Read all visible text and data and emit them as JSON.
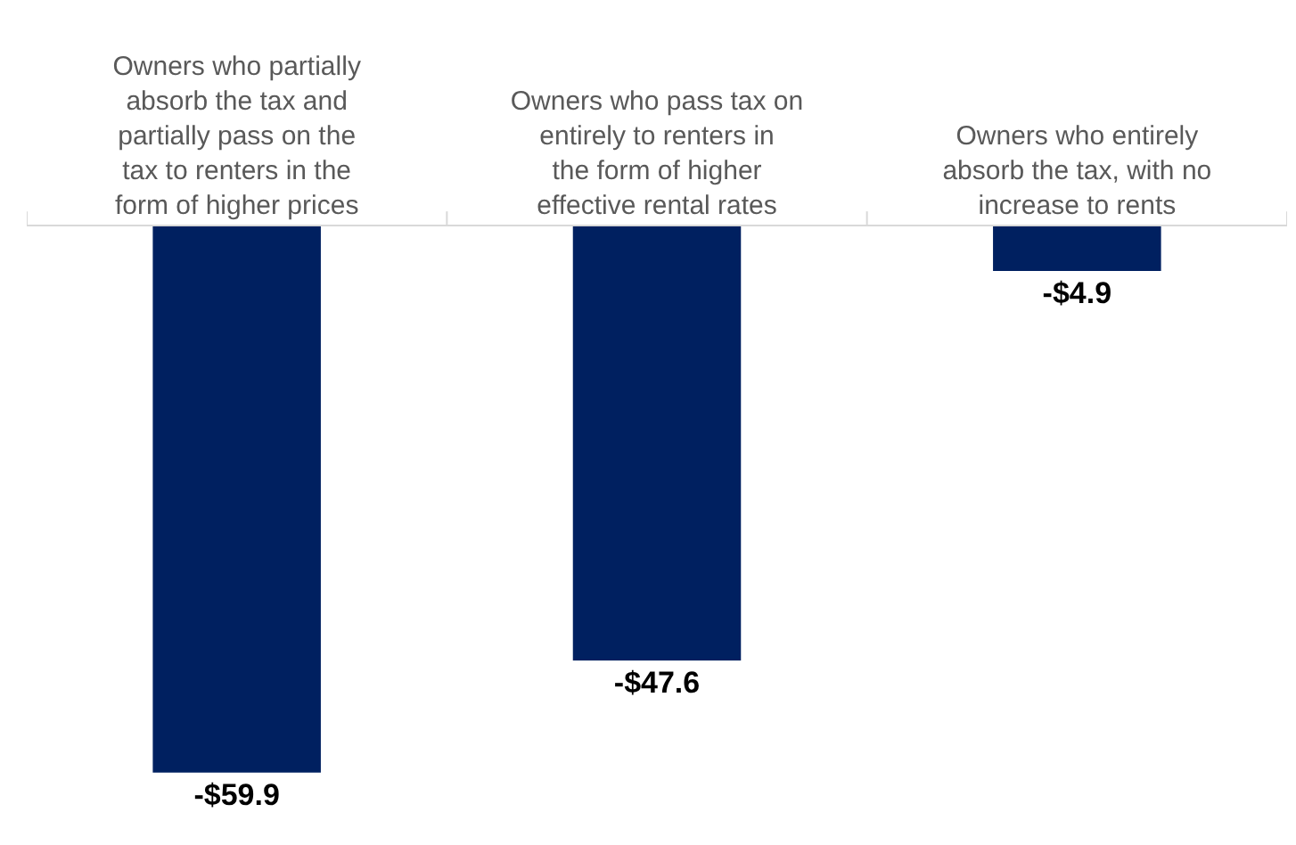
{
  "chart_data": {
    "type": "bar",
    "categories": [
      "Owners who partially absorb the tax and partially pass on the tax to renters in the form of higher prices",
      "Owners who pass tax on entirely to renters in the form of higher effective rental rates",
      "Owners who entirely absorb the tax, with no increase to rents"
    ],
    "values": [
      -59.9,
      -47.6,
      -4.9
    ],
    "value_labels": [
      "-$59.9",
      "-$47.6",
      "-$4.9"
    ],
    "color": "#002060",
    "grid": false,
    "legend": false,
    "tick_labels": "x"
  }
}
